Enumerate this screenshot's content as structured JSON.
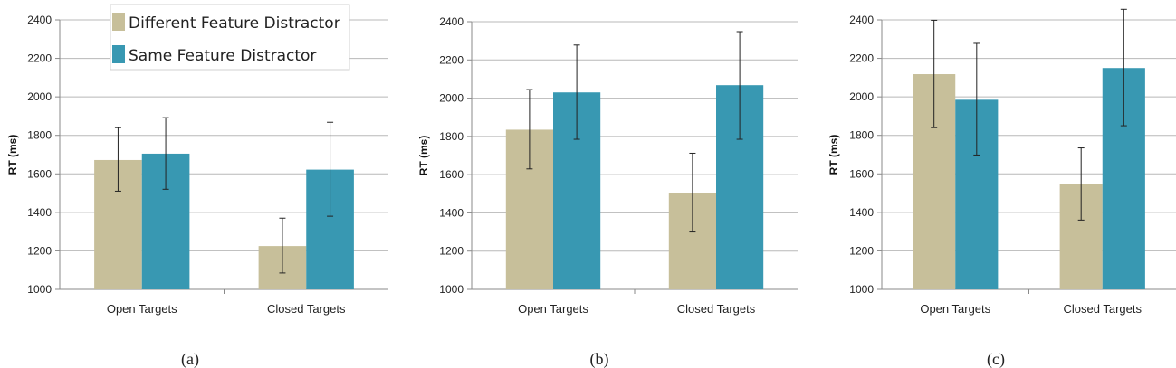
{
  "colors": {
    "different": "#c7bf9a",
    "same": "#3898b2",
    "grid": "#b8b8b8",
    "axis": "#8a8a8a",
    "error": "#222222"
  },
  "legend": {
    "items": [
      "Different Feature Distractor",
      "Same Feature Distractor"
    ]
  },
  "chart_data": [
    {
      "type": "bar",
      "panel_label": "(a)",
      "categories": [
        "Open Targets",
        "Closed Targets"
      ],
      "ylabel": "RT (ms)",
      "ylim": [
        1000,
        2400
      ],
      "yticks": [
        1000,
        1200,
        1400,
        1600,
        1800,
        2000,
        2200,
        2400
      ],
      "grid": true,
      "series": [
        {
          "name": "Different Feature Distractor",
          "values": [
            1672,
            1225
          ],
          "err_low": [
            1510,
            1085
          ],
          "err_high": [
            1840,
            1370
          ]
        },
        {
          "name": "Same Feature Distractor",
          "values": [
            1705,
            1622
          ],
          "err_low": [
            1520,
            1380
          ],
          "err_high": [
            1892,
            1868
          ]
        }
      ]
    },
    {
      "type": "bar",
      "panel_label": "(b)",
      "categories": [
        "Open Targets",
        "Closed Targets"
      ],
      "ylabel": "RT (ms)",
      "ylim": [
        1000,
        2400
      ],
      "yticks": [
        1000,
        1200,
        1400,
        1600,
        1800,
        2000,
        2200,
        2400
      ],
      "grid": true,
      "series": [
        {
          "name": "Different Feature Distractor",
          "values": [
            1835,
            1505
          ],
          "err_low": [
            1630,
            1300
          ],
          "err_high": [
            2045,
            1712
          ]
        },
        {
          "name": "Same Feature Distractor",
          "values": [
            2030,
            2068
          ],
          "err_low": [
            1785,
            1785
          ],
          "err_high": [
            2278,
            2348
          ]
        }
      ]
    },
    {
      "type": "bar",
      "panel_label": "(c)",
      "categories": [
        "Open Targets",
        "Closed Targets"
      ],
      "ylabel": "RT (ms)",
      "ylim": [
        1000,
        2400
      ],
      "yticks": [
        1000,
        1200,
        1400,
        1600,
        1800,
        2000,
        2200,
        2400
      ],
      "grid": true,
      "series": [
        {
          "name": "Different Feature Distractor",
          "values": [
            2118,
            1545
          ],
          "err_low": [
            1840,
            1360
          ],
          "err_high": [
            2398,
            1735
          ]
        },
        {
          "name": "Same Feature Distractor",
          "values": [
            1985,
            2150
          ],
          "err_low": [
            1698,
            1850
          ],
          "err_high": [
            2278,
            2455
          ]
        }
      ]
    }
  ]
}
